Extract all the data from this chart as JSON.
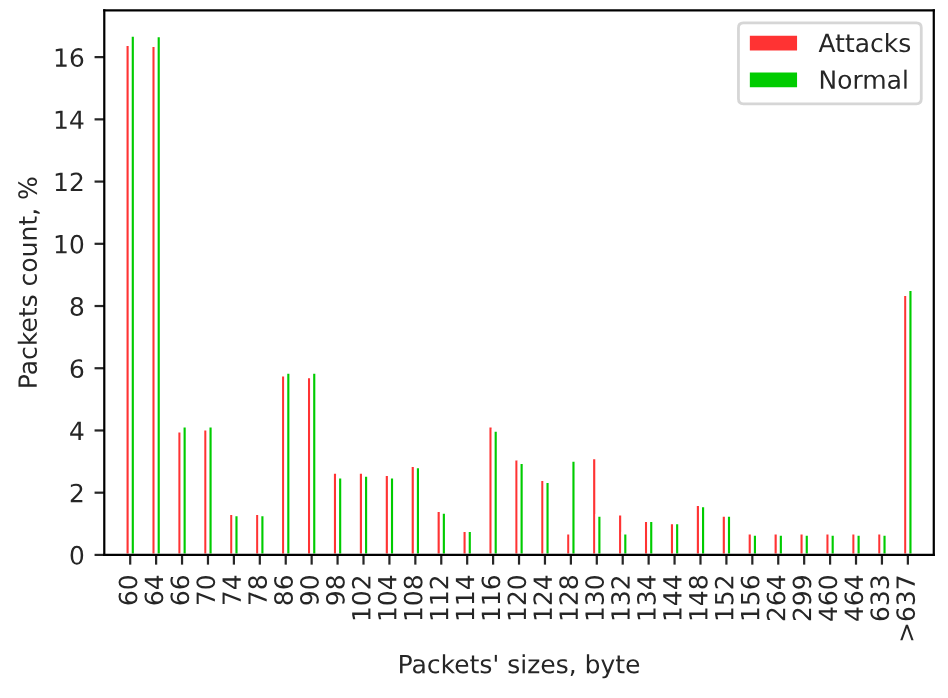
{
  "chart_data": {
    "type": "bar",
    "xlabel": "Packets' sizes, byte",
    "ylabel": "Packets count, %",
    "categories": [
      "60",
      "64",
      "66",
      "70",
      "74",
      "78",
      "86",
      "90",
      "98",
      "102",
      "104",
      "108",
      "112",
      "114",
      "116",
      "120",
      "124",
      "128",
      "130",
      "132",
      "134",
      "144",
      "148",
      "152",
      "156",
      "264",
      "299",
      "460",
      "464",
      "633",
      ">637"
    ],
    "series": [
      {
        "name": "Attacks",
        "color": "#ff3333",
        "values": [
          16.4,
          16.37,
          3.98,
          4.04,
          1.33,
          1.33,
          5.78,
          5.72,
          2.65,
          2.65,
          2.58,
          2.87,
          1.42,
          0.78,
          4.14,
          3.08,
          2.42,
          0.7,
          3.12,
          1.31,
          1.1,
          1.03,
          1.62,
          1.27,
          0.7,
          0.7,
          0.7,
          0.7,
          0.7,
          0.7,
          8.37
        ]
      },
      {
        "name": "Normal",
        "color": "#00cc00",
        "values": [
          16.7,
          16.68,
          4.14,
          4.14,
          1.29,
          1.29,
          5.87,
          5.87,
          2.5,
          2.56,
          2.5,
          2.83,
          1.37,
          0.78,
          4.0,
          2.97,
          2.36,
          3.04,
          1.27,
          0.7,
          1.1,
          1.03,
          1.58,
          1.27,
          0.66,
          0.66,
          0.66,
          0.66,
          0.66,
          0.66,
          8.53
        ]
      }
    ],
    "ylim": [
      0,
      17.5
    ],
    "yticks": [
      0,
      2,
      4,
      6,
      8,
      10,
      12,
      14,
      16
    ],
    "legend": "top right",
    "grid": false
  }
}
